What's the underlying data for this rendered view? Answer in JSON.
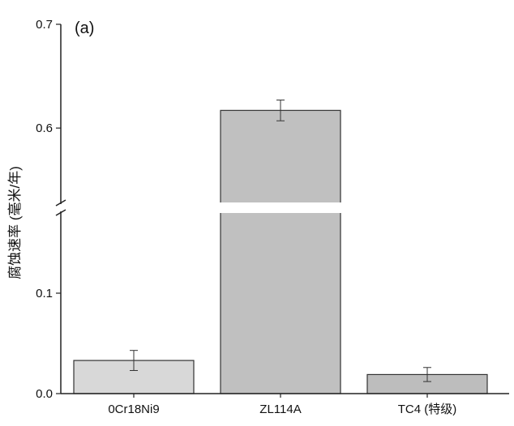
{
  "chart_data": {
    "type": "bar",
    "panel_label": "(a)",
    "title": "",
    "xlabel": "",
    "ylabel": "腐蚀速率 (毫米/年)",
    "categories": [
      "0Cr18Ni9",
      "ZL114A",
      "TC4 (特级)"
    ],
    "values": [
      0.033,
      0.617,
      0.019
    ],
    "errors": [
      0.01,
      0.01,
      0.007
    ],
    "bar_colors": [
      "#d8d8d8",
      "#c0c0c0",
      "#bdbdbd"
    ],
    "axis_break": true,
    "y_segments": {
      "lower": {
        "range": [
          0,
          0.15
        ],
        "ticks": [
          0.0,
          0.1
        ]
      },
      "upper": {
        "range": [
          0.54,
          0.7
        ],
        "ticks": [
          0.6,
          0.7
        ]
      }
    },
    "ytick_labels": [
      "0.0",
      "0.1",
      "0.6",
      "0.7"
    ],
    "grid": false,
    "legend": "none"
  }
}
